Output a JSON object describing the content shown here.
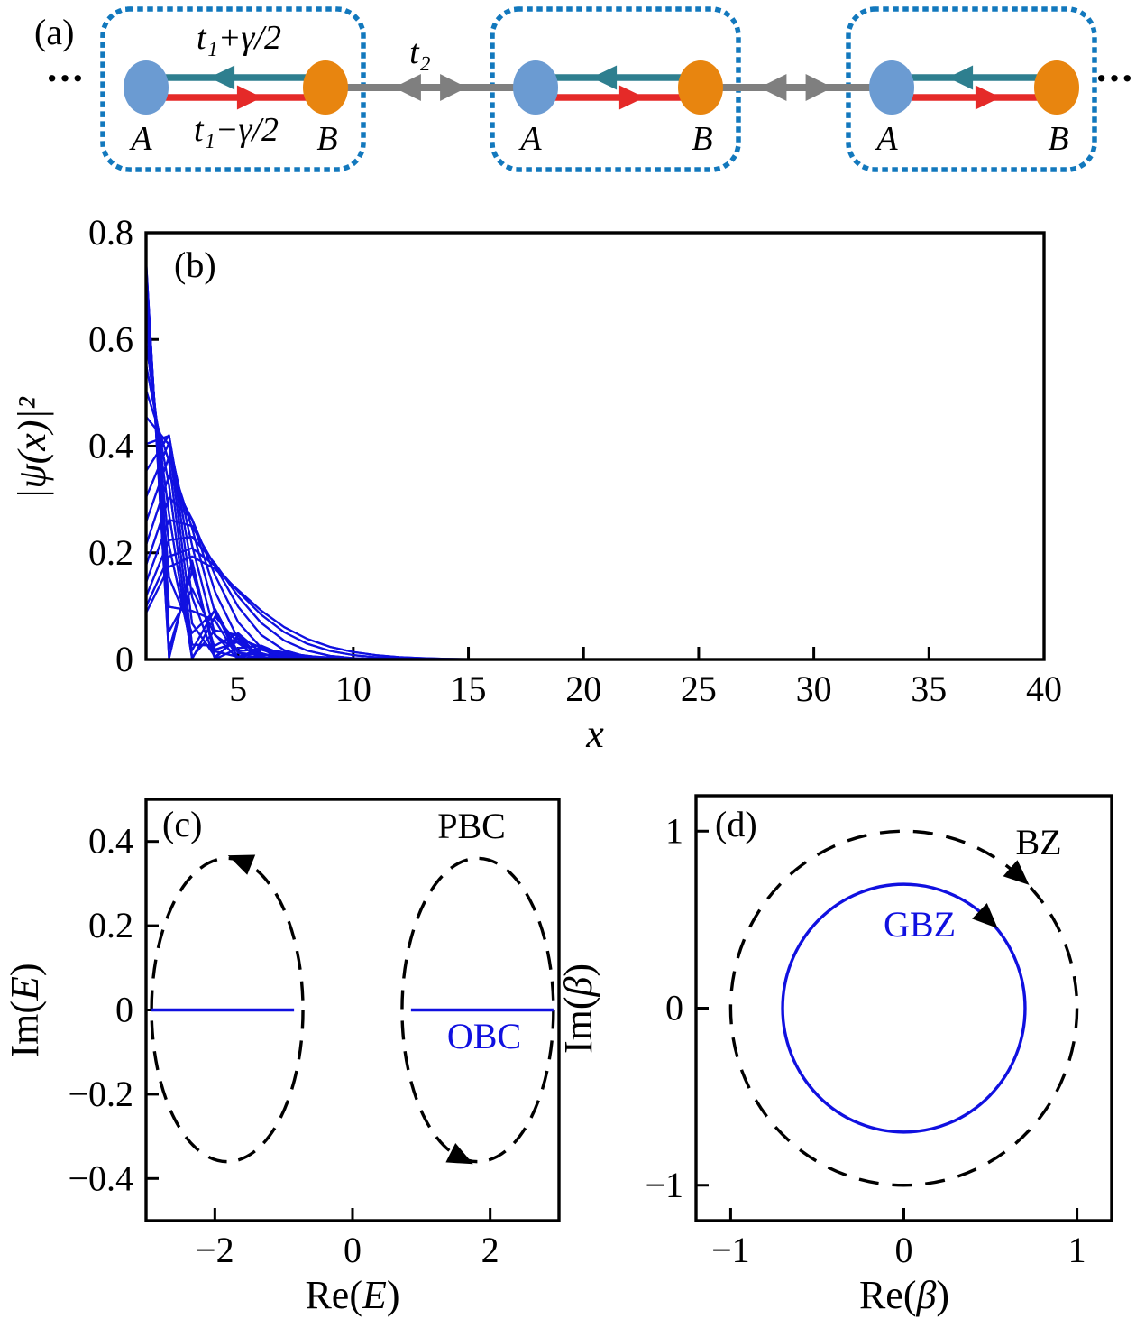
{
  "colors": {
    "accent_blue": "#1010e0",
    "cell_border": "#1278bd",
    "site_a": "#6b9bd2",
    "site_b": "#e8850f",
    "bond_up": "#2e7f8f",
    "bond_down": "#e52a28",
    "inter_cell": "#7f7f7f",
    "ink": "#000000"
  },
  "panel_a": {
    "label": "(a)",
    "ellipsis_left": "···",
    "ellipsis_right": "···",
    "bond_label_upper": "t₁+γ/2",
    "bond_label_lower": "t₁−γ/2",
    "inter_cell_label": "t₂",
    "cells": [
      {
        "site_a": "A",
        "site_b": "B"
      },
      {
        "site_a": "A",
        "site_b": "B"
      },
      {
        "site_a": "A",
        "site_b": "B"
      }
    ]
  },
  "chart_data": [
    {
      "id": "b",
      "type": "line",
      "panel_label": "(b)",
      "xlabel": "x",
      "ylabel": "|ψ(x)|²",
      "xlim": [
        1,
        40
      ],
      "ylim": [
        0,
        0.8
      ],
      "xticks": [
        5,
        10,
        15,
        20,
        25,
        30,
        35,
        40
      ],
      "yticks": [
        0.8,
        0.6,
        0.4,
        0.2,
        0
      ],
      "grid": false,
      "legend": "none",
      "line_color": "#1010e0",
      "series_model": {
        "description": "All open-boundary eigenstate densities are exponentially localized at the left edge (non-Hermitian skin effect); curves decay to ~0 by x≈14",
        "formula": "|psi_n(x)|^2 = C_n * decay_base^x * sin^2(k_n x)",
        "k_n": "n*pi/41 for n = 1..40",
        "normalization": "C_n = 1 / sum_x decay_base^x sin^2(k_n x)",
        "count": 40,
        "sites": 40,
        "decay_base": 0.5,
        "peak_max": 0.73,
        "peak_x": 1
      }
    },
    {
      "id": "c",
      "type": "line",
      "panel_label": "(c)",
      "xlabel_prefix": "Re(",
      "xlabel_var": "E",
      "xlabel_suffix": ")",
      "ylabel_prefix": "Im(",
      "ylabel_var": "E",
      "ylabel_suffix": ")",
      "xlim": [
        -3,
        3
      ],
      "ylim": [
        -0.5,
        0.5
      ],
      "xticks": [
        -2,
        0,
        2
      ],
      "yticks": [
        0.4,
        0.2,
        0,
        -0.2,
        -0.4
      ],
      "pbc_label": "PBC",
      "obc_label": "OBC",
      "pbc_ellipses": [
        {
          "center_re": -1.82,
          "center_im": 0,
          "semi_re": 1.1,
          "semi_im": 0.36
        },
        {
          "center_re": 1.82,
          "center_im": 0,
          "semi_re": 1.1,
          "semi_im": 0.36
        }
      ],
      "obc_segments": [
        {
          "im": 0,
          "re_from": -2.92,
          "re_to": -0.85
        },
        {
          "im": 0,
          "re_from": 0.85,
          "re_to": 2.92
        }
      ],
      "arrows": [
        {
          "re": -1.6,
          "im": 0.353,
          "dir_re": -1,
          "dir_im": 0.066
        },
        {
          "re": 1.55,
          "im": -0.349,
          "dir_re": 1,
          "dir_im": -0.082
        }
      ]
    },
    {
      "id": "d",
      "type": "line",
      "panel_label": "(d)",
      "xlabel_prefix": "Re(",
      "xlabel_var": "β",
      "xlabel_suffix": ")",
      "ylabel_prefix": "Im(",
      "ylabel_var": "β",
      "ylabel_suffix": ")",
      "xlim": [
        -1.2,
        1.2
      ],
      "ylim": [
        -1.2,
        1.2
      ],
      "xticks": [
        -1,
        0,
        1
      ],
      "yticks": [
        1,
        0,
        -1
      ],
      "bz_label": "BZ",
      "gbz_label": "GBZ",
      "bz_circle": {
        "center": [
          0,
          0
        ],
        "radius": 1.0,
        "style": "dashed",
        "color": "black"
      },
      "gbz_circle": {
        "center": [
          0,
          0
        ],
        "radius": 0.7,
        "style": "solid",
        "color": "blue"
      },
      "arrows": [
        {
          "x": 0.656,
          "y": 0.755,
          "dir_x": 0.755,
          "dir_y": -0.656,
          "on": "BZ"
        },
        {
          "x": 0.477,
          "y": 0.512,
          "dir_x": 0.731,
          "dir_y": -0.682,
          "on": "GBZ"
        }
      ]
    }
  ]
}
